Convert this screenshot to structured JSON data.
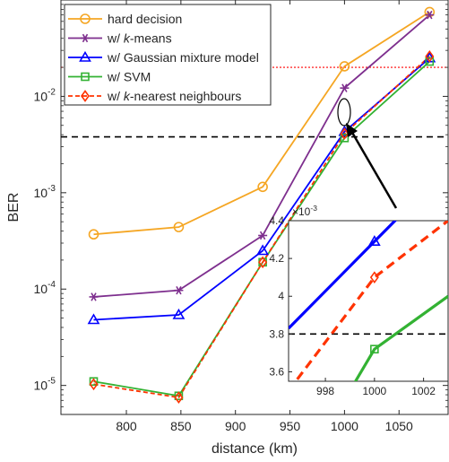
{
  "chart_data": [
    {
      "type": "line",
      "xlabel": "distance (km)",
      "ylabel": "BER",
      "xlim": [
        740,
        1095
      ],
      "ylim": [
        5e-06,
        0.1
      ],
      "yscale": "log",
      "xticks": [
        800,
        850,
        900,
        950,
        1000,
        1050
      ],
      "yticks": [
        {
          "value": 1e-05,
          "base": "10",
          "exp": "-5"
        },
        {
          "value": 0.0001,
          "base": "10",
          "exp": "-4"
        },
        {
          "value": 0.001,
          "base": "10",
          "exp": "-3"
        },
        {
          "value": 0.01,
          "base": "10",
          "exp": "-2"
        }
      ],
      "grid": false,
      "legend_position": "top-left",
      "reference_lines": [
        {
          "y": 0.02,
          "color": "#ff0000",
          "style": "dotted"
        },
        {
          "y": 0.0038,
          "color": "#000000",
          "style": "dashed"
        }
      ],
      "x": [
        770,
        848,
        925,
        1000,
        1078
      ],
      "series": [
        {
          "name": "hard decision",
          "prefix": "",
          "emph": "",
          "suffix": "",
          "color": "#f5a623",
          "marker": "circle",
          "dash": "",
          "values": [
            0.00037,
            0.00044,
            0.00115,
            0.0205,
            0.075
          ]
        },
        {
          "name": "",
          "prefix": "w/ ",
          "emph": "k",
          "suffix": "-means",
          "color": "#7e2f8e",
          "marker": "asterisk",
          "dash": "",
          "values": [
            8.3e-05,
            9.7e-05,
            0.00036,
            0.0122,
            0.07
          ]
        },
        {
          "name": "w/ Gaussian mixture model",
          "prefix": "",
          "emph": "",
          "suffix": "",
          "color": "#0000ff",
          "marker": "triangle",
          "dash": "",
          "values": [
            4.8e-05,
            5.4e-05,
            0.00025,
            0.0043,
            0.025
          ]
        },
        {
          "name": "w/ SVM",
          "prefix": "",
          "emph": "",
          "suffix": "",
          "color": "#33b233",
          "marker": "square",
          "dash": "",
          "values": [
            1.1e-05,
            7.8e-06,
            0.00019,
            0.0037,
            0.023
          ]
        },
        {
          "name": "",
          "prefix": "w/ ",
          "emph": "k",
          "suffix": "-nearest neighbours",
          "color": "#ff3300",
          "marker": "diamond",
          "dash": "5,3",
          "values": [
            1.03e-05,
            7.5e-06,
            0.00019,
            0.0041,
            0.026
          ]
        }
      ]
    },
    {
      "type": "line",
      "inset": true,
      "xlim": [
        996.5,
        1003
      ],
      "ylim": [
        3.55,
        4.4
      ],
      "xticks": [
        998,
        1000,
        1002
      ],
      "yticks": [
        3.6,
        3.8,
        4,
        4.2,
        4.4
      ],
      "ytick_labels": [
        "3.6",
        "3.8",
        "4",
        "4.2",
        "4.4"
      ],
      "y_multiplier": {
        "base": "×10",
        "exp": "-3"
      },
      "reference_lines": [
        {
          "y": 3.8,
          "color": "#000000",
          "style": "dashed"
        }
      ],
      "series": [
        {
          "color": "#0000ff",
          "marker": "triangle",
          "dash": "",
          "points": [
            [
              996.5,
              3.83
            ],
            [
              1000,
              4.29
            ],
            [
              1001.6,
              4.5
            ]
          ]
        },
        {
          "color": "#ff3300",
          "marker": "diamond",
          "dash": "10,6",
          "points": [
            [
              996.5,
              3.5
            ],
            [
              1000,
              4.1
            ],
            [
              1003,
              4.4
            ]
          ]
        },
        {
          "color": "#33b233",
          "marker": "square",
          "dash": "",
          "points": [
            [
              999,
              3.5
            ],
            [
              1000,
              3.72
            ],
            [
              1003,
              4.0
            ]
          ]
        }
      ],
      "marker_points": [
        {
          "series": 0,
          "x": 1000,
          "y": 4.29
        },
        {
          "series": 1,
          "x": 1000,
          "y": 4.1
        },
        {
          "series": 2,
          "x": 1000,
          "y": 3.72
        }
      ]
    }
  ]
}
